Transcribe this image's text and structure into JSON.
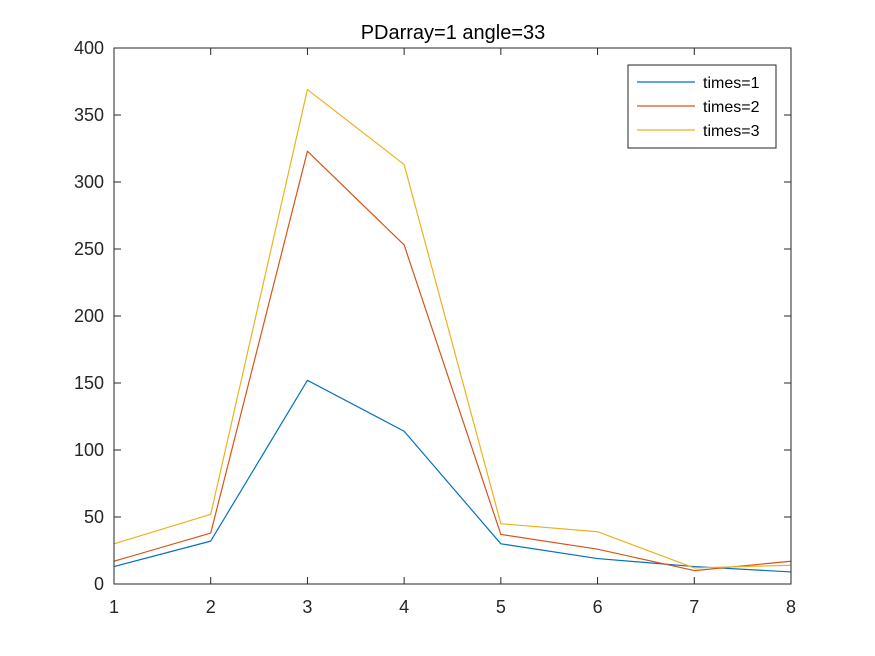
{
  "chart_data": {
    "type": "line",
    "title": "PDarray=1  angle=33",
    "xlabel": "",
    "ylabel": "",
    "x": [
      1,
      2,
      3,
      4,
      5,
      6,
      7,
      8
    ],
    "xlim": [
      1,
      8
    ],
    "ylim": [
      0,
      400
    ],
    "xticks": [
      "1",
      "2",
      "3",
      "4",
      "5",
      "6",
      "7",
      "8"
    ],
    "yticks": [
      "0",
      "50",
      "100",
      "150",
      "200",
      "250",
      "300",
      "350",
      "400"
    ],
    "grid": false,
    "legend_position": "top-right",
    "series": [
      {
        "name": "times=1",
        "color": "#0072BD",
        "values": [
          13,
          32,
          152,
          114,
          30,
          19,
          13,
          9
        ]
      },
      {
        "name": "times=2",
        "color": "#D95319",
        "values": [
          17,
          38,
          323,
          253,
          37,
          26,
          10,
          17
        ]
      },
      {
        "name": "times=3",
        "color": "#EDB120",
        "values": [
          30,
          52,
          369,
          313,
          45,
          39,
          12,
          14
        ]
      }
    ]
  }
}
